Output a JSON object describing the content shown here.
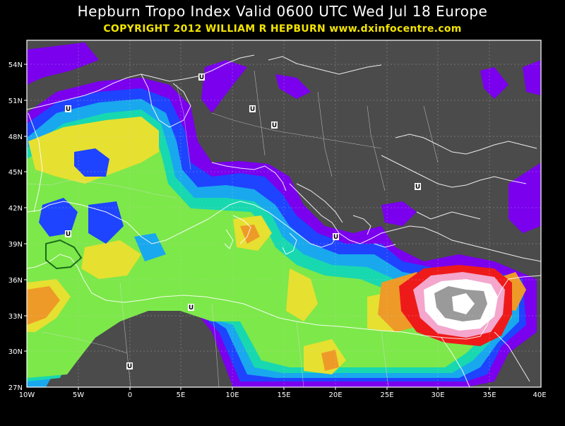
{
  "header": {
    "title": "Hepburn Tropo Index Valid 0600 UTC Wed Jul 18 Europe",
    "copyright": "COPYRIGHT 2012   WILLIAM R HEPBURN   www.dxinfocentre.com"
  },
  "axes": {
    "lat_labels": [
      "54N",
      "51N",
      "48N",
      "45N",
      "42N",
      "39N",
      "36N",
      "33N",
      "30N",
      "27N"
    ],
    "lon_labels": [
      "10W",
      "5W",
      "0",
      "5E",
      "10E",
      "15E",
      "20E",
      "25E",
      "30E",
      "35E",
      "40E"
    ]
  },
  "markers": {
    "symbol": "U",
    "count": 11
  },
  "colors": {
    "background": "#4b4b4b",
    "violet": "#7a00ee",
    "blue": "#1e44ff",
    "cyan": "#19a8ee",
    "teal": "#18d8b0",
    "green": "#7de84a",
    "yellow": "#e6e030",
    "orange": "#ee9a28",
    "red": "#ee1a1a",
    "pink": "#f4a6cc",
    "white": "#ffffff",
    "gray": "#9a9a9a"
  }
}
